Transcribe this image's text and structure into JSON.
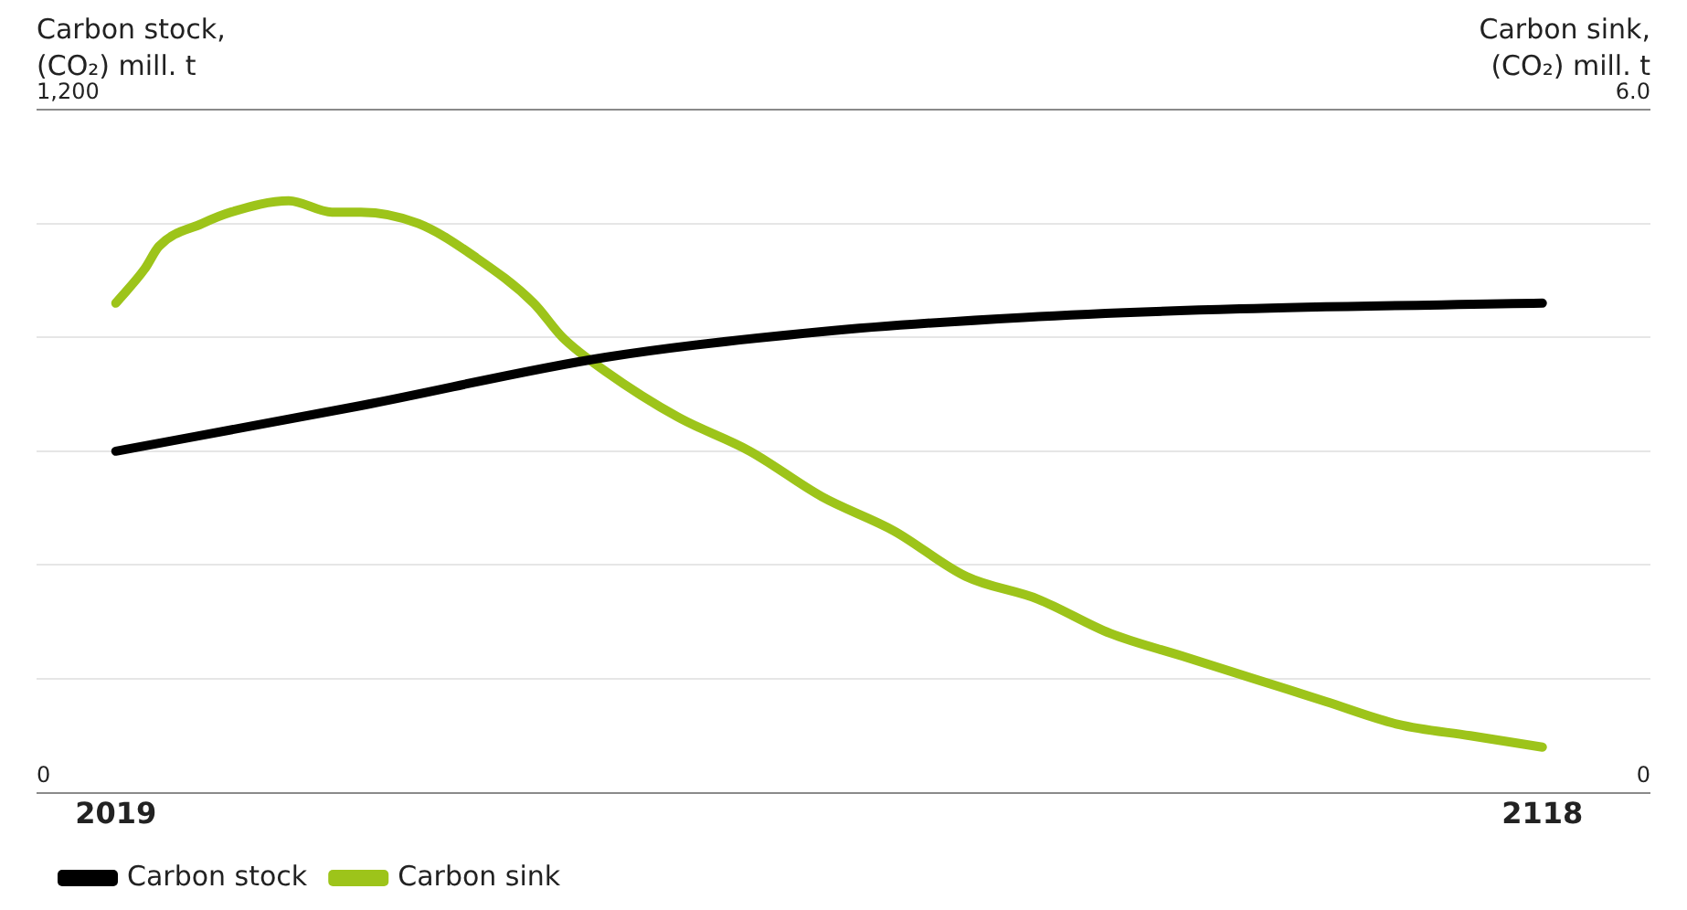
{
  "chart_data": {
    "type": "line",
    "ylabel": "Carbon stock, (CO₂) mill. t",
    "y2label": "Carbon sink, (CO₂) mill. t",
    "xlim": [
      2013.5,
      2125.5
    ],
    "xticks": [
      2019,
      2118
    ],
    "ylim": [
      0,
      1200
    ],
    "yticks": [
      {
        "value": 0,
        "label": "0"
      },
      {
        "value": 200,
        "label": null
      },
      {
        "value": 400,
        "label": null
      },
      {
        "value": 600,
        "label": null
      },
      {
        "value": 800,
        "label": null
      },
      {
        "value": 1000,
        "label": null
      },
      {
        "value": 1200,
        "label": "1,200"
      }
    ],
    "y2lim": [
      0,
      6
    ],
    "y2ticks": [
      {
        "value": 0,
        "label": "0"
      },
      {
        "value": 6,
        "label": "6.0"
      }
    ],
    "grid": "y",
    "legend": "bottom left",
    "series": [
      {
        "name": "Carbon stock",
        "color": "#000000",
        "x": [
          2019,
          2036,
          2053,
          2068,
          2082,
          2097,
          2118
        ],
        "values": [
          600,
          680,
          765,
          810,
          835,
          850,
          860
        ]
      },
      {
        "name": "Carbon sink",
        "color": "#9dc41a",
        "axis": "y2",
        "x": [
          2019,
          2021,
          2022,
          2025,
          2027,
          2031,
          2034,
          2036,
          2040,
          2044,
          2048,
          2050,
          2053,
          2058,
          2063,
          2068,
          2073,
          2078,
          2083,
          2088,
          2093,
          2098,
          2103,
          2108,
          2113,
          2118
        ],
        "values": [
          4.3,
          4.6,
          4.8,
          5.0,
          5.1,
          5.2,
          5.1,
          5.1,
          5.0,
          4.7,
          4.3,
          4.0,
          3.7,
          3.3,
          3.0,
          2.6,
          2.3,
          1.9,
          1.7,
          1.4,
          1.2,
          1.0,
          0.8,
          0.6,
          0.5,
          0.4
        ]
      }
    ]
  }
}
